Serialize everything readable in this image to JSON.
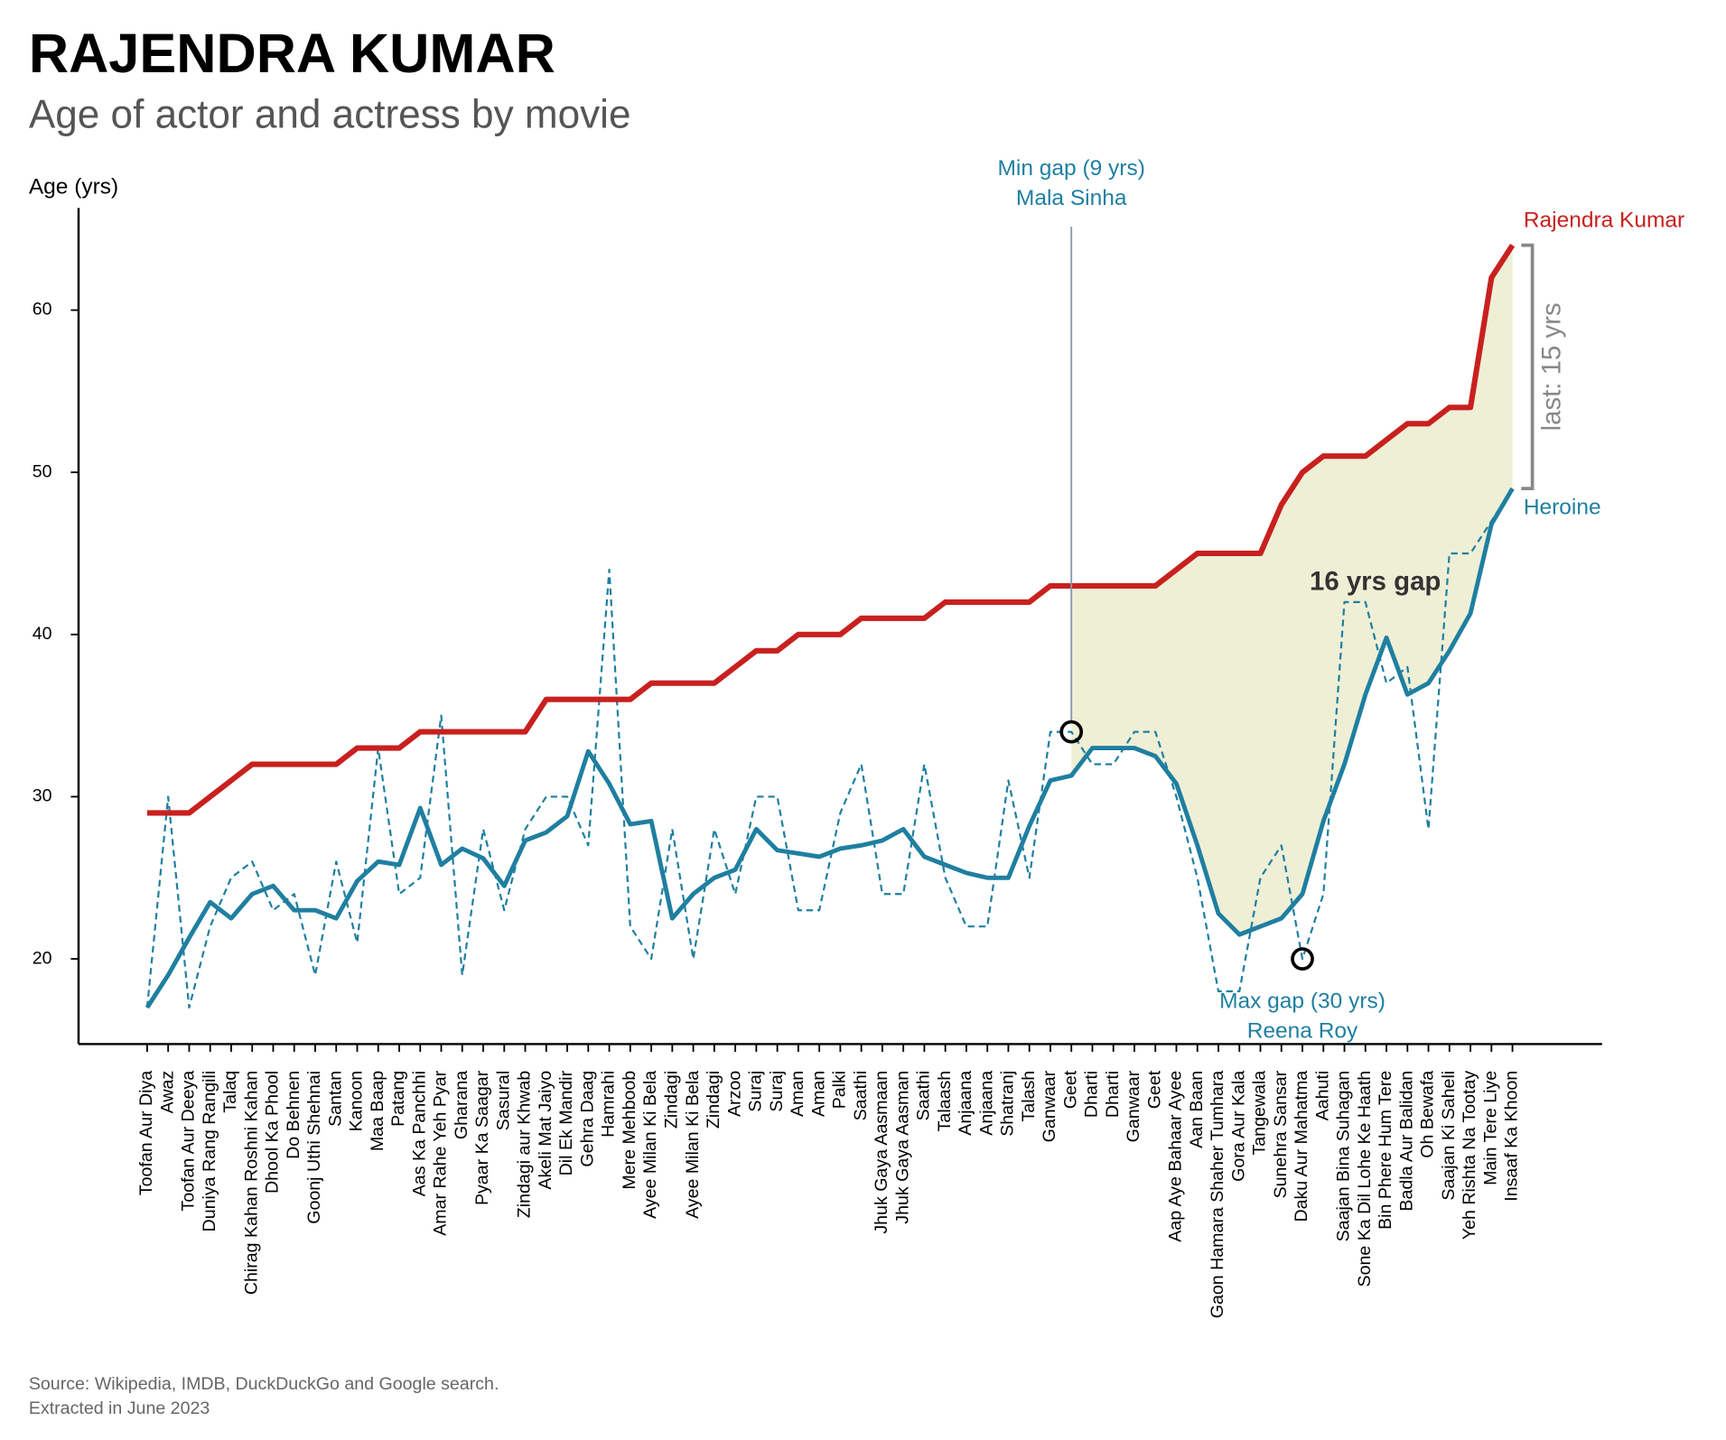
{
  "chart_data": {
    "type": "line",
    "title": "RAJENDRA KUMAR",
    "subtitle": "Age of actor and actress by movie",
    "y_label": "Age (yrs)",
    "source": [
      "Source: Wikipedia, IMDB, DuckDuckGo and Google search.",
      "Extracted in June 2023"
    ],
    "categories": [
      "Toofan Aur Diya",
      "Awaz",
      "Toofan Aur Deeya",
      "Duniya Rang Rangili",
      "Talaq",
      "Chirag Kahan Roshni Kahan",
      "Dhool Ka Phool",
      "Do Behnen",
      "Goonj Uthi Shehnai",
      "Santan",
      "Kanoon",
      "Maa Baap",
      "Patang",
      "Aas Ka Panchhi",
      "Amar Rahe Yeh Pyar",
      "Gharana",
      "Pyaar Ka Saagar",
      "Sasural",
      "Zindagi aur Khwab",
      "Akeli Mat Jaiyo",
      "Dil Ek Mandir",
      "Gehra Daag",
      "Hamrahi",
      "Mere Mehboob",
      "Ayee Milan Ki Bela",
      "Zindagi",
      "Ayee Milan Ki Bela",
      "Zindagi",
      "Arzoo",
      "Suraj",
      "Suraj",
      "Aman",
      "Aman",
      "Palki",
      "Saathi",
      "Jhuk Gaya Aasmaan",
      "Jhuk Gaya Aasman",
      "Saathi",
      "Talaash",
      "Anjaana",
      "Anjaana",
      "Shatranj",
      "Talash",
      "Ganwaar",
      "Geet",
      "Dharti",
      "Dharti",
      "Ganwaar",
      "Geet",
      "Aap Aye Bahaar Ayee",
      "Aan Baan",
      "Gaon Hamara Shaher Tumhara",
      "Gora Aur Kala",
      "Tangewala",
      "Sunehra Sansar",
      "Daku Aur Mahatma",
      "Aahuti",
      "Saajan Bina Suhagan",
      "Sone Ka Dil Lohe Ke Haath",
      "Bin Phere Hum Tere",
      "Badla Aur Balidan",
      "Oh Bewafa",
      "Saajan Ki Saheli",
      "Yeh Rishta Na Tootay",
      "Main Tere Liye",
      "Insaaf Ka Khoon"
    ],
    "series": [
      {
        "name": "Rajendra Kumar",
        "color": "#c8201f",
        "values": [
          29,
          29,
          29,
          30,
          31,
          32,
          32,
          32,
          32,
          32,
          33,
          33,
          33,
          34,
          34,
          34,
          34,
          34,
          34,
          36,
          36,
          36,
          36,
          36,
          37,
          37,
          37,
          37,
          38,
          39,
          39,
          40,
          40,
          40,
          41,
          41,
          41,
          41,
          42,
          42,
          42,
          42,
          42,
          43,
          43,
          43,
          43,
          43,
          43,
          44,
          45,
          45,
          45,
          45,
          48,
          50,
          51,
          51,
          51,
          52,
          53,
          53,
          54,
          54,
          62,
          64
        ]
      },
      {
        "name": "Heroine",
        "color": "#1f7fa0",
        "values": [
          17,
          19,
          21.3,
          23.5,
          22.5,
          24,
          24.5,
          23,
          23,
          22.5,
          24.8,
          26,
          25.8,
          29.3,
          25.8,
          26.8,
          26.2,
          24.5,
          27.3,
          27.8,
          28.8,
          32.8,
          30.8,
          28.3,
          28.5,
          22.5,
          24,
          25,
          25.5,
          28,
          26.7,
          26.5,
          26.3,
          26.8,
          27,
          27.3,
          28,
          26.3,
          25.8,
          25.3,
          25,
          25,
          28.2,
          31,
          31.3,
          33,
          33,
          33,
          32.5,
          30.8,
          27,
          22.8,
          21.5,
          22,
          22.5,
          24,
          28.5,
          32,
          36.3,
          39.8,
          36.3,
          37,
          39,
          41.3,
          46.8,
          49
        ]
      },
      {
        "color": "#1f7fa0",
        "dashed": true,
        "values": [
          17,
          30,
          17,
          22,
          25,
          26,
          23,
          24,
          19,
          26,
          21,
          33,
          24,
          25,
          35,
          19,
          28,
          23,
          28,
          30,
          30,
          27,
          44,
          22,
          20,
          28,
          20,
          28,
          24,
          30,
          30,
          23,
          23,
          29,
          32,
          24,
          24,
          32,
          25,
          22,
          22,
          31,
          25,
          34,
          34,
          32,
          32,
          34,
          34,
          30,
          25,
          18,
          18,
          25,
          27,
          20,
          24,
          42,
          42,
          37,
          38,
          28,
          45,
          45,
          47,
          49
        ]
      }
    ],
    "ylim": [
      14.75,
      66.3
    ],
    "yticks": [
      20,
      30,
      40,
      50,
      60
    ],
    "grid": false,
    "area_color": "#efefd6",
    "annotations": {
      "min_gap": [
        "Min gap (9 yrs)",
        "Mala Sinha"
      ],
      "max_gap": [
        "Max gap (30 yrs)",
        "Reena Roy"
      ],
      "mid_gap": "16 yrs gap",
      "last_gap": "last: 15 yrs"
    }
  }
}
